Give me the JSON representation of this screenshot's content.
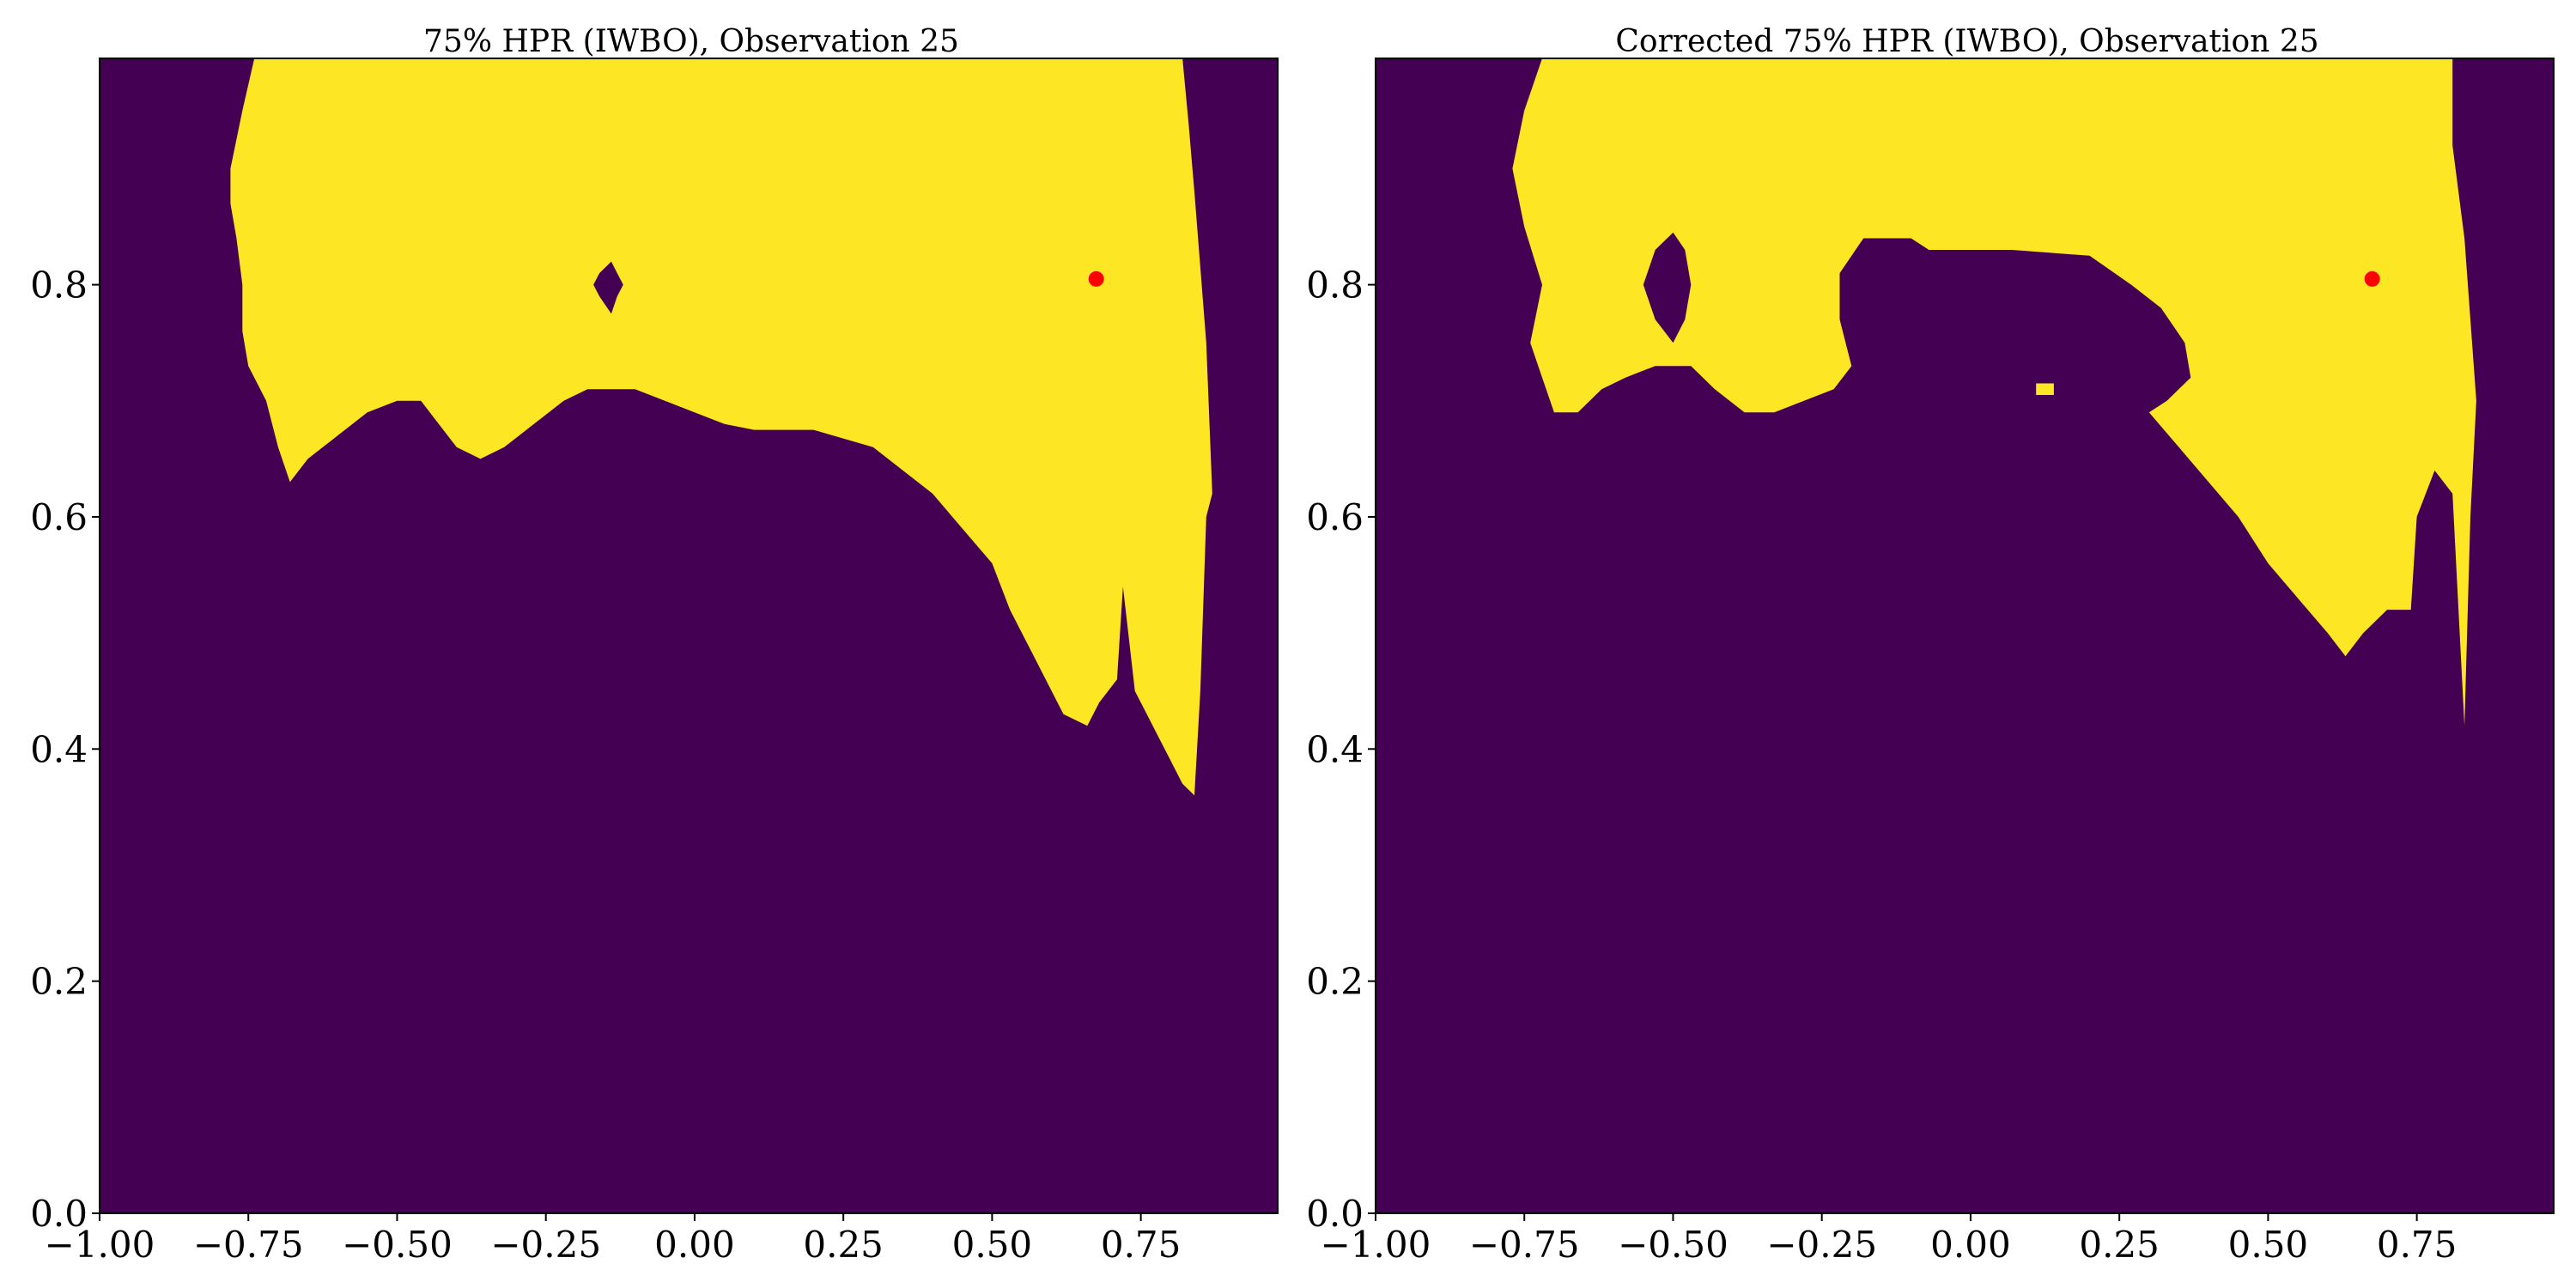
{
  "chart_data": [
    {
      "type": "heatmap",
      "title": "75% HPR (IWBO), Observation 25",
      "xlabel": "",
      "ylabel": "",
      "xlim": [
        -1.0,
        0.98
      ],
      "ylim": [
        0.0,
        0.995
      ],
      "x_ticks": [
        "−1.00",
        "−0.75",
        "−0.50",
        "−0.25",
        "0.00",
        "0.25",
        "0.50",
        "0.75"
      ],
      "x_tick_values": [
        -1.0,
        -0.75,
        -0.5,
        -0.25,
        0.0,
        0.25,
        0.5,
        0.75
      ],
      "y_ticks": [
        "0.0",
        "0.2",
        "0.4",
        "0.6",
        "0.8"
      ],
      "y_tick_values": [
        0.0,
        0.2,
        0.4,
        0.6,
        0.8
      ],
      "colors": {
        "outside": "#440154",
        "inside": "#fde725",
        "marker": "#ff0000"
      },
      "region_boundary": [
        [
          -0.74,
          0.995
        ],
        [
          -0.76,
          0.95
        ],
        [
          -0.78,
          0.9
        ],
        [
          -0.78,
          0.87
        ],
        [
          -0.77,
          0.84
        ],
        [
          -0.76,
          0.8
        ],
        [
          -0.76,
          0.76
        ],
        [
          -0.75,
          0.73
        ],
        [
          -0.72,
          0.7
        ],
        [
          -0.7,
          0.66
        ],
        [
          -0.68,
          0.63
        ],
        [
          -0.65,
          0.65
        ],
        [
          -0.6,
          0.67
        ],
        [
          -0.55,
          0.69
        ],
        [
          -0.5,
          0.7
        ],
        [
          -0.46,
          0.7
        ],
        [
          -0.43,
          0.68
        ],
        [
          -0.4,
          0.66
        ],
        [
          -0.36,
          0.65
        ],
        [
          -0.32,
          0.66
        ],
        [
          -0.27,
          0.68
        ],
        [
          -0.22,
          0.7
        ],
        [
          -0.18,
          0.71
        ],
        [
          -0.1,
          0.71
        ],
        [
          -0.05,
          0.7
        ],
        [
          0.0,
          0.69
        ],
        [
          0.05,
          0.68
        ],
        [
          0.1,
          0.675
        ],
        [
          0.2,
          0.675
        ],
        [
          0.3,
          0.66
        ],
        [
          0.35,
          0.64
        ],
        [
          0.4,
          0.62
        ],
        [
          0.45,
          0.59
        ],
        [
          0.5,
          0.56
        ],
        [
          0.53,
          0.52
        ],
        [
          0.56,
          0.49
        ],
        [
          0.59,
          0.46
        ],
        [
          0.62,
          0.43
        ],
        [
          0.66,
          0.42
        ],
        [
          0.68,
          0.44
        ],
        [
          0.71,
          0.46
        ],
        [
          0.72,
          0.54
        ],
        [
          0.74,
          0.45
        ],
        [
          0.76,
          0.43
        ],
        [
          0.78,
          0.41
        ],
        [
          0.8,
          0.39
        ],
        [
          0.82,
          0.37
        ],
        [
          0.84,
          0.36
        ],
        [
          0.85,
          0.45
        ],
        [
          0.86,
          0.6
        ],
        [
          0.87,
          0.62
        ],
        [
          0.86,
          0.75
        ],
        [
          0.84,
          0.88
        ],
        [
          0.83,
          0.94
        ],
        [
          0.82,
          0.995
        ]
      ],
      "holes": [
        [
          [
            -0.14,
            0.775
          ],
          [
            -0.16,
            0.79
          ],
          [
            -0.17,
            0.8
          ],
          [
            -0.16,
            0.81
          ],
          [
            -0.14,
            0.82
          ],
          [
            -0.13,
            0.81
          ],
          [
            -0.12,
            0.8
          ],
          [
            -0.13,
            0.79
          ]
        ]
      ],
      "stray_regions": [
        [
          [
            0.84,
            0.56
          ],
          [
            0.85,
            0.56
          ],
          [
            0.85,
            0.52
          ],
          [
            0.84,
            0.52
          ]
        ]
      ],
      "marker": {
        "x": 0.675,
        "y": 0.805
      }
    },
    {
      "type": "heatmap",
      "title": "Corrected 75% HPR (IWBO), Observation 25",
      "xlabel": "",
      "ylabel": "",
      "xlim": [
        -1.0,
        0.98
      ],
      "ylim": [
        0.0,
        0.995
      ],
      "x_ticks": [
        "−1.00",
        "−0.75",
        "−0.50",
        "−0.25",
        "0.00",
        "0.25",
        "0.50",
        "0.75"
      ],
      "x_tick_values": [
        -1.0,
        -0.75,
        -0.5,
        -0.25,
        0.0,
        0.25,
        0.5,
        0.75
      ],
      "y_ticks": [
        "0.0",
        "0.2",
        "0.4",
        "0.6",
        "0.8"
      ],
      "y_tick_values": [
        0.0,
        0.2,
        0.4,
        0.6,
        0.8
      ],
      "colors": {
        "outside": "#440154",
        "inside": "#fde725",
        "marker": "#ff0000"
      },
      "region_boundary": [
        [
          -0.72,
          0.995
        ],
        [
          -0.75,
          0.95
        ],
        [
          -0.77,
          0.9
        ],
        [
          -0.75,
          0.85
        ],
        [
          -0.72,
          0.8
        ],
        [
          -0.74,
          0.75
        ],
        [
          -0.72,
          0.72
        ],
        [
          -0.7,
          0.69
        ],
        [
          -0.66,
          0.69
        ],
        [
          -0.62,
          0.71
        ],
        [
          -0.58,
          0.72
        ],
        [
          -0.53,
          0.73
        ],
        [
          -0.47,
          0.73
        ],
        [
          -0.43,
          0.71
        ],
        [
          -0.38,
          0.69
        ],
        [
          -0.33,
          0.69
        ],
        [
          -0.28,
          0.7
        ],
        [
          -0.23,
          0.71
        ],
        [
          -0.2,
          0.73
        ],
        [
          -0.22,
          0.77
        ],
        [
          -0.22,
          0.81
        ],
        [
          -0.18,
          0.84
        ],
        [
          -0.1,
          0.84
        ],
        [
          -0.07,
          0.83
        ],
        [
          0.07,
          0.83
        ],
        [
          0.2,
          0.825
        ],
        [
          0.27,
          0.8
        ],
        [
          0.32,
          0.78
        ],
        [
          0.36,
          0.75
        ],
        [
          0.37,
          0.72
        ],
        [
          0.33,
          0.7
        ],
        [
          0.3,
          0.69
        ],
        [
          0.35,
          0.66
        ],
        [
          0.4,
          0.63
        ],
        [
          0.45,
          0.6
        ],
        [
          0.5,
          0.56
        ],
        [
          0.55,
          0.53
        ],
        [
          0.6,
          0.5
        ],
        [
          0.63,
          0.48
        ],
        [
          0.66,
          0.5
        ],
        [
          0.7,
          0.52
        ],
        [
          0.74,
          0.52
        ],
        [
          0.75,
          0.6
        ],
        [
          0.78,
          0.64
        ],
        [
          0.81,
          0.62
        ],
        [
          0.83,
          0.42
        ],
        [
          0.84,
          0.6
        ],
        [
          0.85,
          0.7
        ],
        [
          0.83,
          0.84
        ],
        [
          0.81,
          0.92
        ],
        [
          0.81,
          0.995
        ]
      ],
      "holes": [
        [
          [
            -0.5,
            0.75
          ],
          [
            -0.53,
            0.77
          ],
          [
            -0.55,
            0.8
          ],
          [
            -0.53,
            0.83
          ],
          [
            -0.5,
            0.845
          ],
          [
            -0.48,
            0.83
          ],
          [
            -0.47,
            0.8
          ],
          [
            -0.48,
            0.77
          ]
        ]
      ],
      "stray_regions": [
        [
          [
            0.11,
            0.715
          ],
          [
            0.14,
            0.715
          ],
          [
            0.14,
            0.705
          ],
          [
            0.11,
            0.705
          ]
        ]
      ],
      "marker": {
        "x": 0.675,
        "y": 0.805
      }
    }
  ]
}
